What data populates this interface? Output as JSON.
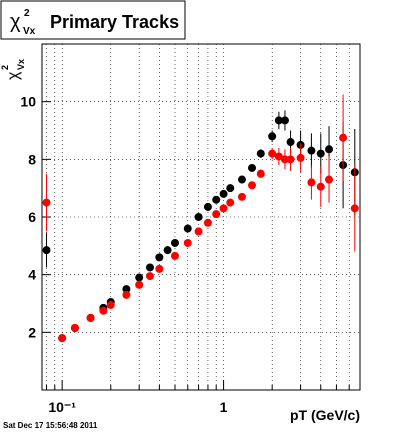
{
  "chart_data": {
    "type": "scatter",
    "title": "Primary Tracks",
    "title_symbol": "χ",
    "title_sup": "2",
    "title_sub": "Vx",
    "ylabel_symbol": "χ",
    "ylabel_sup": "2",
    "ylabel_sub": "Vx",
    "xlabel": "pT (GeV/c)",
    "footer": "Sat Dec 17 15:56:48 2011",
    "xscale": "log",
    "xlim": [
      0.075,
      7
    ],
    "ylim": [
      0,
      12
    ],
    "xticks": [
      {
        "value": 0.1,
        "label": "10⁻¹"
      },
      1
    ],
    "xminorticks": [
      0.08,
      0.09,
      0.2,
      0.3,
      0.4,
      0.5,
      0.6,
      0.7,
      0.8,
      0.9,
      2,
      3,
      4,
      5,
      6
    ],
    "yticks": [
      2,
      4,
      6,
      8,
      10
    ],
    "grid": true,
    "series": [
      {
        "name": "black",
        "color": "#000000",
        "x": [
          0.08,
          0.1,
          0.12,
          0.15,
          0.18,
          0.2,
          0.25,
          0.3,
          0.35,
          0.4,
          0.45,
          0.5,
          0.6,
          0.7,
          0.8,
          0.9,
          1.0,
          1.1,
          1.3,
          1.5,
          1.7,
          2.0,
          2.2,
          2.4,
          2.6,
          3.0,
          3.5,
          4.0,
          4.5,
          5.5,
          6.5
        ],
        "values": [
          4.85,
          1.8,
          2.15,
          2.5,
          2.85,
          3.05,
          3.5,
          3.9,
          4.25,
          4.6,
          4.85,
          5.1,
          5.6,
          6.0,
          6.35,
          6.6,
          6.8,
          7.0,
          7.3,
          7.7,
          8.2,
          8.8,
          9.35,
          9.35,
          8.6,
          8.5,
          8.3,
          8.2,
          8.35,
          7.8,
          7.55
        ],
        "errors": [
          0.6,
          0.05,
          0.05,
          0.05,
          0.05,
          0.05,
          0.05,
          0.05,
          0.05,
          0.05,
          0.05,
          0.05,
          0.05,
          0.05,
          0.05,
          0.05,
          0.05,
          0.08,
          0.1,
          0.12,
          0.15,
          0.2,
          0.3,
          0.35,
          0.4,
          0.5,
          0.6,
          0.7,
          0.8,
          1.5,
          1.5
        ]
      },
      {
        "name": "red",
        "color": "#ff0000",
        "x": [
          0.08,
          0.1,
          0.12,
          0.15,
          0.18,
          0.2,
          0.25,
          0.3,
          0.35,
          0.4,
          0.5,
          0.6,
          0.7,
          0.8,
          0.9,
          1.0,
          1.1,
          1.3,
          1.5,
          1.7,
          2.0,
          2.2,
          2.4,
          2.6,
          3.0,
          3.5,
          4.0,
          4.5,
          5.5,
          6.5
        ],
        "values": [
          6.5,
          1.8,
          2.15,
          2.5,
          2.75,
          2.95,
          3.3,
          3.65,
          3.95,
          4.2,
          4.65,
          5.1,
          5.5,
          5.8,
          6.1,
          6.3,
          6.5,
          6.7,
          7.1,
          7.5,
          8.2,
          8.1,
          8.0,
          8.0,
          8.05,
          7.2,
          7.05,
          7.3,
          8.75,
          6.3
        ],
        "errors": [
          1.0,
          0.05,
          0.05,
          0.05,
          0.05,
          0.05,
          0.05,
          0.05,
          0.05,
          0.05,
          0.05,
          0.05,
          0.05,
          0.05,
          0.05,
          0.05,
          0.08,
          0.1,
          0.12,
          0.15,
          0.2,
          0.3,
          0.35,
          0.4,
          0.5,
          0.6,
          0.7,
          0.8,
          1.5,
          1.5
        ]
      }
    ]
  }
}
